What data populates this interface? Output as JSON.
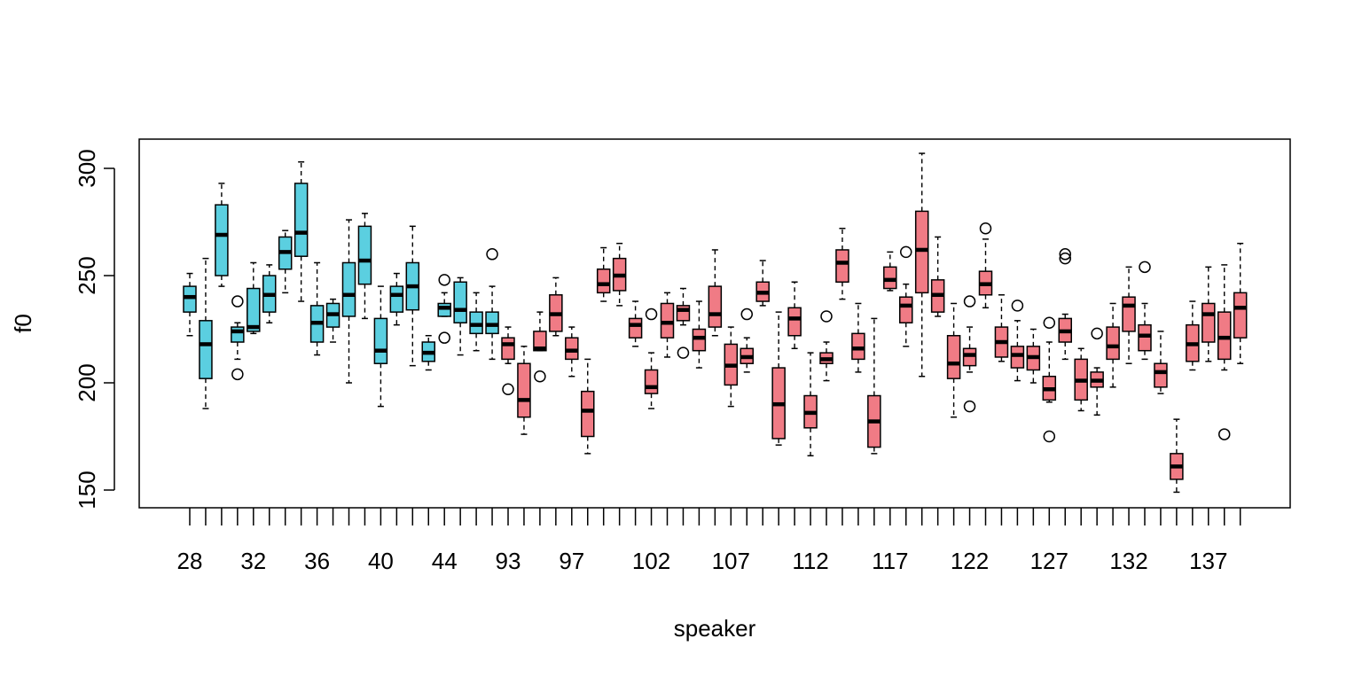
{
  "chart_data": {
    "type": "box",
    "xlabel": "speaker",
    "ylabel": "f0",
    "ylim": [
      140,
      313
    ],
    "yticks": [
      150,
      200,
      250,
      300
    ],
    "fill_colors": {
      "group_a": "#5bcfe0",
      "group_b": "#f07b85"
    },
    "boxes": [
      {
        "id": "28",
        "label": "28",
        "group": "a",
        "whislo": 222,
        "q1": 233,
        "med": 240,
        "q3": 245,
        "whishi": 251,
        "outliers": []
      },
      {
        "id": "29",
        "label": "",
        "group": "a",
        "whislo": 188,
        "q1": 202,
        "med": 218,
        "q3": 229,
        "whishi": 258,
        "outliers": []
      },
      {
        "id": "30",
        "label": "",
        "group": "a",
        "whislo": 245,
        "q1": 250,
        "med": 269,
        "q3": 283,
        "whishi": 293,
        "outliers": []
      },
      {
        "id": "31",
        "label": "",
        "group": "a",
        "whislo": 211,
        "q1": 219,
        "med": 224,
        "q3": 226,
        "whishi": 228,
        "outliers": [
          204,
          238
        ]
      },
      {
        "id": "32",
        "label": "32",
        "group": "a",
        "whislo": 223,
        "q1": 224,
        "med": 226,
        "q3": 244,
        "whishi": 256,
        "outliers": []
      },
      {
        "id": "33",
        "label": "",
        "group": "a",
        "whislo": 228,
        "q1": 233,
        "med": 241,
        "q3": 250,
        "whishi": 255,
        "outliers": []
      },
      {
        "id": "34",
        "label": "",
        "group": "a",
        "whislo": 242,
        "q1": 253,
        "med": 261,
        "q3": 268,
        "whishi": 271,
        "outliers": []
      },
      {
        "id": "35",
        "label": "",
        "group": "a",
        "whislo": 238,
        "q1": 259,
        "med": 270,
        "q3": 293,
        "whishi": 303,
        "outliers": []
      },
      {
        "id": "36",
        "label": "36",
        "group": "a",
        "whislo": 213,
        "q1": 219,
        "med": 228,
        "q3": 236,
        "whishi": 256,
        "outliers": []
      },
      {
        "id": "37",
        "label": "",
        "group": "a",
        "whislo": 219,
        "q1": 226,
        "med": 232,
        "q3": 237,
        "whishi": 239,
        "outliers": []
      },
      {
        "id": "38",
        "label": "",
        "group": "a",
        "whislo": 200,
        "q1": 231,
        "med": 241,
        "q3": 256,
        "whishi": 276,
        "outliers": []
      },
      {
        "id": "39",
        "label": "",
        "group": "a",
        "whislo": 230,
        "q1": 246,
        "med": 257,
        "q3": 273,
        "whishi": 279,
        "outliers": []
      },
      {
        "id": "40",
        "label": "40",
        "group": "a",
        "whislo": 189,
        "q1": 209,
        "med": 215,
        "q3": 230,
        "whishi": 245,
        "outliers": []
      },
      {
        "id": "41",
        "label": "",
        "group": "a",
        "whislo": 227,
        "q1": 233,
        "med": 241,
        "q3": 245,
        "whishi": 251,
        "outliers": []
      },
      {
        "id": "42",
        "label": "",
        "group": "a",
        "whislo": 208,
        "q1": 234,
        "med": 245,
        "q3": 256,
        "whishi": 273,
        "outliers": []
      },
      {
        "id": "43",
        "label": "",
        "group": "a",
        "whislo": 206,
        "q1": 210,
        "med": 214,
        "q3": 219,
        "whishi": 222,
        "outliers": []
      },
      {
        "id": "44",
        "label": "44",
        "group": "a",
        "whislo": 231,
        "q1": 231,
        "med": 235,
        "q3": 237,
        "whishi": 242,
        "outliers": [
          221,
          248
        ]
      },
      {
        "id": "45",
        "label": "",
        "group": "a",
        "whislo": 213,
        "q1": 228,
        "med": 234,
        "q3": 247,
        "whishi": 249,
        "outliers": []
      },
      {
        "id": "46",
        "label": "",
        "group": "a",
        "whislo": 215,
        "q1": 223,
        "med": 227,
        "q3": 233,
        "whishi": 242,
        "outliers": []
      },
      {
        "id": "47",
        "label": "",
        "group": "a",
        "whislo": 211,
        "q1": 223,
        "med": 227,
        "q3": 233,
        "whishi": 245,
        "outliers": [
          260
        ]
      },
      {
        "id": "93",
        "label": "93",
        "group": "b",
        "whislo": 209,
        "q1": 211,
        "med": 218,
        "q3": 221,
        "whishi": 226,
        "outliers": [
          197
        ]
      },
      {
        "id": "94",
        "label": "",
        "group": "b",
        "whislo": 176,
        "q1": 184,
        "med": 192,
        "q3": 209,
        "whishi": 217,
        "outliers": []
      },
      {
        "id": "95",
        "label": "",
        "group": "b",
        "whislo": 215,
        "q1": 215,
        "med": 216,
        "q3": 224,
        "whishi": 233,
        "outliers": [
          203
        ]
      },
      {
        "id": "96",
        "label": "",
        "group": "b",
        "whislo": 222,
        "q1": 224,
        "med": 232,
        "q3": 241,
        "whishi": 249,
        "outliers": []
      },
      {
        "id": "97",
        "label": "97",
        "group": "b",
        "whislo": 203,
        "q1": 211,
        "med": 215,
        "q3": 221,
        "whishi": 226,
        "outliers": []
      },
      {
        "id": "98",
        "label": "",
        "group": "b",
        "whislo": 167,
        "q1": 175,
        "med": 187,
        "q3": 196,
        "whishi": 211,
        "outliers": []
      },
      {
        "id": "99",
        "label": "",
        "group": "b",
        "whislo": 238,
        "q1": 242,
        "med": 246,
        "q3": 253,
        "whishi": 263,
        "outliers": []
      },
      {
        "id": "100",
        "label": "",
        "group": "b",
        "whislo": 236,
        "q1": 243,
        "med": 250,
        "q3": 258,
        "whishi": 265,
        "outliers": []
      },
      {
        "id": "101",
        "label": "",
        "group": "b",
        "whislo": 217,
        "q1": 221,
        "med": 227,
        "q3": 230,
        "whishi": 238,
        "outliers": []
      },
      {
        "id": "102",
        "label": "102",
        "group": "b",
        "whislo": 188,
        "q1": 195,
        "med": 198,
        "q3": 206,
        "whishi": 214,
        "outliers": [
          232
        ]
      },
      {
        "id": "103",
        "label": "",
        "group": "b",
        "whislo": 212,
        "q1": 221,
        "med": 228,
        "q3": 237,
        "whishi": 242,
        "outliers": []
      },
      {
        "id": "104",
        "label": "",
        "group": "b",
        "whislo": 227,
        "q1": 229,
        "med": 234,
        "q3": 236,
        "whishi": 244,
        "outliers": [
          214
        ]
      },
      {
        "id": "105",
        "label": "",
        "group": "b",
        "whislo": 207,
        "q1": 215,
        "med": 221,
        "q3": 225,
        "whishi": 238,
        "outliers": []
      },
      {
        "id": "106",
        "label": "",
        "group": "b",
        "whislo": 222,
        "q1": 226,
        "med": 232,
        "q3": 245,
        "whishi": 262,
        "outliers": []
      },
      {
        "id": "107",
        "label": "107",
        "group": "b",
        "whislo": 189,
        "q1": 199,
        "med": 208,
        "q3": 218,
        "whishi": 226,
        "outliers": []
      },
      {
        "id": "108",
        "label": "",
        "group": "b",
        "whislo": 205,
        "q1": 209,
        "med": 212,
        "q3": 216,
        "whishi": 221,
        "outliers": [
          232
        ]
      },
      {
        "id": "109",
        "label": "",
        "group": "b",
        "whislo": 236,
        "q1": 238,
        "med": 242,
        "q3": 247,
        "whishi": 257,
        "outliers": []
      },
      {
        "id": "110",
        "label": "",
        "group": "b",
        "whislo": 171,
        "q1": 174,
        "med": 190,
        "q3": 207,
        "whishi": 233,
        "outliers": []
      },
      {
        "id": "111",
        "label": "",
        "group": "b",
        "whislo": 216,
        "q1": 222,
        "med": 230,
        "q3": 235,
        "whishi": 247,
        "outliers": []
      },
      {
        "id": "112",
        "label": "112",
        "group": "b",
        "whislo": 166,
        "q1": 179,
        "med": 186,
        "q3": 194,
        "whishi": 214,
        "outliers": []
      },
      {
        "id": "113",
        "label": "",
        "group": "b",
        "whislo": 201,
        "q1": 209,
        "med": 211,
        "q3": 214,
        "whishi": 219,
        "outliers": [
          231
        ]
      },
      {
        "id": "114",
        "label": "",
        "group": "b",
        "whislo": 239,
        "q1": 247,
        "med": 256,
        "q3": 262,
        "whishi": 272,
        "outliers": []
      },
      {
        "id": "115",
        "label": "",
        "group": "b",
        "whislo": 205,
        "q1": 211,
        "med": 216,
        "q3": 223,
        "whishi": 237,
        "outliers": []
      },
      {
        "id": "116",
        "label": "",
        "group": "b",
        "whislo": 167,
        "q1": 170,
        "med": 182,
        "q3": 194,
        "whishi": 230,
        "outliers": []
      },
      {
        "id": "117",
        "label": "117",
        "group": "b",
        "whislo": 243,
        "q1": 244,
        "med": 248,
        "q3": 254,
        "whishi": 261,
        "outliers": []
      },
      {
        "id": "118",
        "label": "",
        "group": "b",
        "whislo": 217,
        "q1": 228,
        "med": 236,
        "q3": 240,
        "whishi": 246,
        "outliers": [
          261
        ]
      },
      {
        "id": "119",
        "label": "",
        "group": "b",
        "whislo": 203,
        "q1": 242,
        "med": 262,
        "q3": 280,
        "whishi": 307,
        "outliers": []
      },
      {
        "id": "120",
        "label": "",
        "group": "b",
        "whislo": 231,
        "q1": 233,
        "med": 241,
        "q3": 248,
        "whishi": 268,
        "outliers": []
      },
      {
        "id": "121",
        "label": "",
        "group": "b",
        "whislo": 184,
        "q1": 202,
        "med": 209,
        "q3": 222,
        "whishi": 237,
        "outliers": []
      },
      {
        "id": "122",
        "label": "122",
        "group": "b",
        "whislo": 205,
        "q1": 208,
        "med": 213,
        "q3": 216,
        "whishi": 226,
        "outliers": [
          189,
          238
        ]
      },
      {
        "id": "123",
        "label": "",
        "group": "b",
        "whislo": 235,
        "q1": 241,
        "med": 246,
        "q3": 252,
        "whishi": 267,
        "outliers": [
          272
        ]
      },
      {
        "id": "124",
        "label": "",
        "group": "b",
        "whislo": 210,
        "q1": 212,
        "med": 219,
        "q3": 226,
        "whishi": 241,
        "outliers": []
      },
      {
        "id": "125",
        "label": "",
        "group": "b",
        "whislo": 201,
        "q1": 207,
        "med": 213,
        "q3": 217,
        "whishi": 229,
        "outliers": [
          236
        ]
      },
      {
        "id": "126",
        "label": "",
        "group": "b",
        "whislo": 200,
        "q1": 206,
        "med": 212,
        "q3": 217,
        "whishi": 225,
        "outliers": []
      },
      {
        "id": "127",
        "label": "127",
        "group": "b",
        "whislo": 191,
        "q1": 192,
        "med": 197,
        "q3": 203,
        "whishi": 219,
        "outliers": [
          175,
          228
        ]
      },
      {
        "id": "128",
        "label": "",
        "group": "b",
        "whislo": 211,
        "q1": 219,
        "med": 224,
        "q3": 230,
        "whishi": 232,
        "outliers": [
          258,
          260
        ]
      },
      {
        "id": "129",
        "label": "",
        "group": "b",
        "whislo": 187,
        "q1": 192,
        "med": 201,
        "q3": 211,
        "whishi": 216,
        "outliers": []
      },
      {
        "id": "130",
        "label": "",
        "group": "b",
        "whislo": 185,
        "q1": 198,
        "med": 201,
        "q3": 205,
        "whishi": 207,
        "outliers": [
          223
        ]
      },
      {
        "id": "131",
        "label": "",
        "group": "b",
        "whislo": 198,
        "q1": 211,
        "med": 217,
        "q3": 226,
        "whishi": 237,
        "outliers": []
      },
      {
        "id": "132",
        "label": "132",
        "group": "b",
        "whislo": 209,
        "q1": 224,
        "med": 236,
        "q3": 240,
        "whishi": 254,
        "outliers": []
      },
      {
        "id": "133",
        "label": "",
        "group": "b",
        "whislo": 211,
        "q1": 215,
        "med": 222,
        "q3": 227,
        "whishi": 237,
        "outliers": [
          254
        ]
      },
      {
        "id": "134",
        "label": "",
        "group": "b",
        "whislo": 195,
        "q1": 198,
        "med": 205,
        "q3": 209,
        "whishi": 224,
        "outliers": []
      },
      {
        "id": "135",
        "label": "",
        "group": "b",
        "whislo": 149,
        "q1": 155,
        "med": 161,
        "q3": 167,
        "whishi": 183,
        "outliers": []
      },
      {
        "id": "136",
        "label": "",
        "group": "b",
        "whislo": 206,
        "q1": 210,
        "med": 218,
        "q3": 227,
        "whishi": 238,
        "outliers": []
      },
      {
        "id": "137",
        "label": "137",
        "group": "b",
        "whislo": 210,
        "q1": 219,
        "med": 232,
        "q3": 237,
        "whishi": 254,
        "outliers": []
      },
      {
        "id": "138",
        "label": "",
        "group": "b",
        "whislo": 206,
        "q1": 211,
        "med": 221,
        "q3": 233,
        "whishi": 255,
        "outliers": [
          176
        ]
      },
      {
        "id": "139",
        "label": "",
        "group": "b",
        "whislo": 209,
        "q1": 221,
        "med": 235,
        "q3": 242,
        "whishi": 265,
        "outliers": []
      }
    ]
  }
}
